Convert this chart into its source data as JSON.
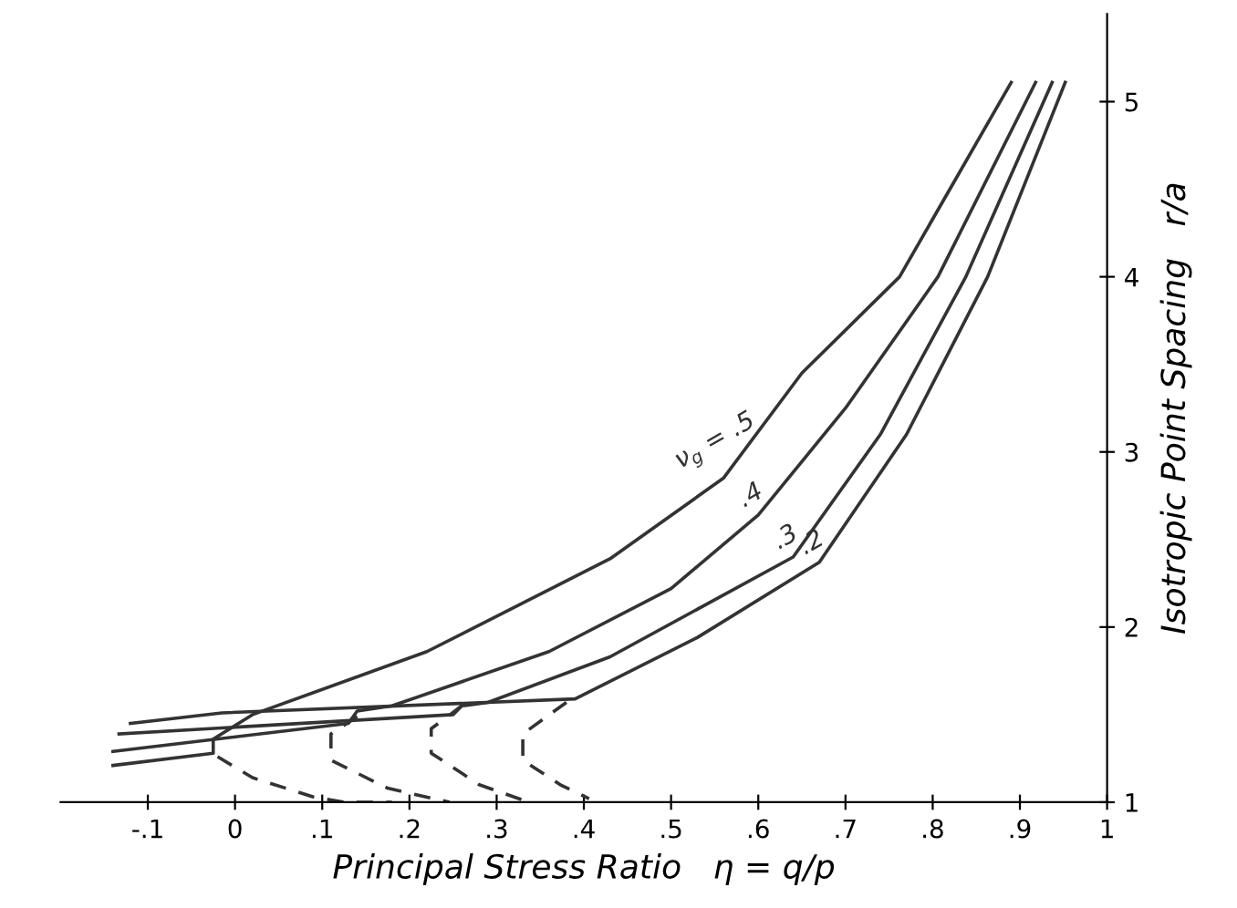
{
  "chart_data": {
    "type": "line",
    "xlabel": "Principal Stress Ratio   η = q/p",
    "ylabel": "Isotropic Point Spacing   r/a",
    "xlim": [
      -0.2,
      1.0
    ],
    "ylim": [
      1,
      5.5
    ],
    "xticks": [
      {
        "value": -0.1,
        "label": "-.1"
      },
      0,
      {
        "value": 0.1,
        "label": ".1"
      },
      {
        "value": 0.2,
        "label": ".2"
      },
      {
        "value": 0.3,
        "label": ".3"
      },
      {
        "value": 0.4,
        "label": ".4"
      },
      {
        "value": 0.5,
        "label": ".5"
      },
      {
        "value": 0.6,
        "label": ".6"
      },
      {
        "value": 0.7,
        "label": ".7"
      },
      {
        "value": 0.8,
        "label": ".8"
      },
      {
        "value": 0.9,
        "label": ".9"
      },
      1
    ],
    "yticks": [
      1,
      2,
      3,
      4,
      5
    ],
    "grid": false,
    "legend": false,
    "marker": "none",
    "series": [
      {
        "name": "ν$_{g}$ = .5",
        "color": "#333333",
        "line_style": "solid",
        "x": [
          -0.14,
          -0.025,
          -0.025,
          0.02,
          0.22,
          0.43,
          0.56,
          0.65,
          0.762,
          0.89
        ],
        "values": [
          1.21,
          1.28,
          1.36,
          1.5,
          1.86,
          2.39,
          2.85,
          3.45,
          4.0,
          5.11
        ]
      },
      {
        "name": ".4",
        "color": "#333333",
        "line_style": "solid",
        "x": [
          -0.14,
          0.13,
          0.14,
          0.18,
          0.36,
          0.5,
          0.6,
          0.7,
          0.806,
          0.918
        ],
        "values": [
          1.29,
          1.45,
          1.52,
          1.55,
          1.86,
          2.22,
          2.64,
          3.25,
          4.0,
          5.11
        ]
      },
      {
        "name": ".3",
        "color": "#333333",
        "line_style": "solid",
        "x": [
          -0.133,
          0.25,
          0.26,
          0.29,
          0.43,
          0.64,
          0.74,
          0.838,
          0.937
        ],
        "values": [
          1.39,
          1.5,
          1.55,
          1.57,
          1.83,
          2.4,
          3.1,
          4.0,
          5.11
        ]
      },
      {
        "name": ".2",
        "color": "#333333",
        "line_style": "solid",
        "x": [
          -0.12,
          -0.015,
          0.39,
          0.53,
          0.67,
          0.77,
          0.863,
          0.952
        ],
        "values": [
          1.45,
          1.51,
          1.59,
          1.94,
          2.37,
          3.1,
          4.0,
          5.11
        ]
      },
      {
        "color": "#333333",
        "line_style": "dashed",
        "x": [
          -0.02,
          0.02,
          0.09,
          0.126,
          0.18
        ],
        "values": [
          1.26,
          1.14,
          1.03,
          1.0,
          1.0
        ]
      },
      {
        "color": "#333333",
        "line_style": "dashed",
        "x": [
          0.14,
          0.11,
          0.11,
          0.175,
          0.246
        ],
        "values": [
          1.49,
          1.39,
          1.24,
          1.08,
          1.0
        ]
      },
      {
        "color": "#333333",
        "line_style": "dashed",
        "x": [
          0.26,
          0.225,
          0.225,
          0.28,
          0.337
        ],
        "values": [
          1.55,
          1.42,
          1.28,
          1.1,
          1.0
        ]
      },
      {
        "color": "#333333",
        "line_style": "dashed",
        "x": [
          0.38,
          0.33,
          0.33,
          0.373,
          0.406
        ],
        "values": [
          1.57,
          1.39,
          1.24,
          1.1,
          1.02
        ]
      }
    ]
  }
}
